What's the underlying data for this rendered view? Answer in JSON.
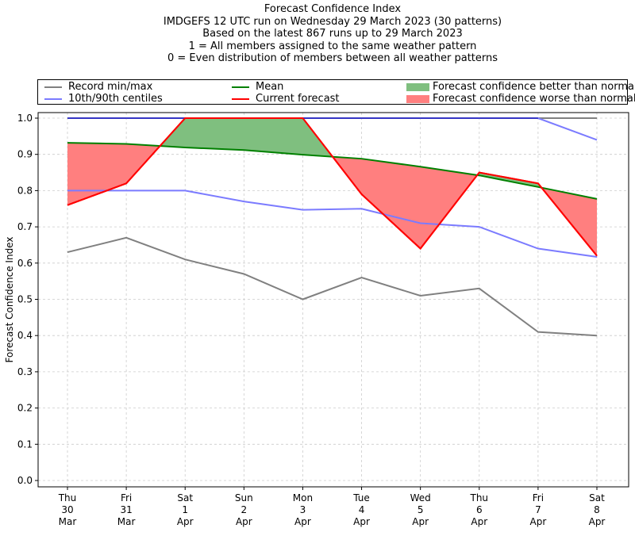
{
  "chart_data": {
    "type": "line",
    "title_lines": [
      "Forecast Confidence Index",
      "IMDGEFS 12 UTC run on Wednesday 29 March 2023 (30 patterns)",
      "Based on the latest 867 runs up to 29 March 2023",
      "1 = All members assigned to the same weather pattern",
      "0 = Even distribution of members between all weather patterns"
    ],
    "xlabel": "",
    "ylabel": "Forecast Confidence Index",
    "ylim": [
      0.0,
      1.0
    ],
    "yticks": [
      "0.0",
      "0.1",
      "0.2",
      "0.3",
      "0.4",
      "0.5",
      "0.6",
      "0.7",
      "0.8",
      "0.9",
      "1.0"
    ],
    "grid": true,
    "legend_position": "top (above plot, 3 columns)",
    "categories": [
      {
        "dow": "Thu",
        "day": "30",
        "mon": "Mar"
      },
      {
        "dow": "Fri",
        "day": "31",
        "mon": "Mar"
      },
      {
        "dow": "Sat",
        "day": "1",
        "mon": "Apr"
      },
      {
        "dow": "Sun",
        "day": "2",
        "mon": "Apr"
      },
      {
        "dow": "Mon",
        "day": "3",
        "mon": "Apr"
      },
      {
        "dow": "Tue",
        "day": "4",
        "mon": "Apr"
      },
      {
        "dow": "Wed",
        "day": "5",
        "mon": "Apr"
      },
      {
        "dow": "Thu",
        "day": "6",
        "mon": "Apr"
      },
      {
        "dow": "Fri",
        "day": "7",
        "mon": "Apr"
      },
      {
        "dow": "Sat",
        "day": "8",
        "mon": "Apr"
      }
    ],
    "series": [
      {
        "name": "Record max",
        "legend": "Record min/max",
        "color": "#808080",
        "values": [
          1.0,
          1.0,
          1.0,
          1.0,
          1.0,
          1.0,
          1.0,
          1.0,
          1.0,
          1.0
        ]
      },
      {
        "name": "Record min",
        "legend": "Record min/max",
        "color": "#808080",
        "values": [
          0.63,
          0.67,
          0.61,
          0.57,
          0.5,
          0.56,
          0.51,
          0.53,
          0.41,
          0.4
        ]
      },
      {
        "name": "90th centile",
        "legend": "10th/90th centiles",
        "color": "#7b7bff",
        "values": [
          1.0,
          1.0,
          1.0,
          1.0,
          1.0,
          1.0,
          1.0,
          1.0,
          1.0,
          0.94
        ]
      },
      {
        "name": "10th centile",
        "legend": "10th/90th centiles",
        "color": "#7b7bff",
        "values": [
          0.8,
          0.8,
          0.8,
          0.77,
          0.747,
          0.75,
          0.71,
          0.7,
          0.64,
          0.617
        ]
      },
      {
        "name": "Mean",
        "legend": "Mean",
        "color": "#008000",
        "values": [
          0.932,
          0.929,
          0.919,
          0.912,
          0.899,
          0.888,
          0.866,
          0.842,
          0.81,
          0.777
        ]
      },
      {
        "name": "Current forecast",
        "legend": "Current forecast",
        "color": "#ff0000",
        "values": [
          0.76,
          0.82,
          1.0,
          1.0,
          1.0,
          0.79,
          0.64,
          0.85,
          0.82,
          0.62
        ]
      }
    ],
    "fills": [
      {
        "name": "Forecast confidence better than normal",
        "color": "#7fbf7f",
        "condition": "current > mean"
      },
      {
        "name": "Forecast confidence worse than normal",
        "color": "#ff7f7f",
        "condition": "current < mean"
      }
    ]
  },
  "legend": {
    "record": "Record min/max",
    "centiles": "10th/90th centiles",
    "mean": "Mean",
    "current": "Current forecast",
    "better": "Forecast confidence better than normal",
    "worse": "Forecast confidence worse than normal"
  }
}
